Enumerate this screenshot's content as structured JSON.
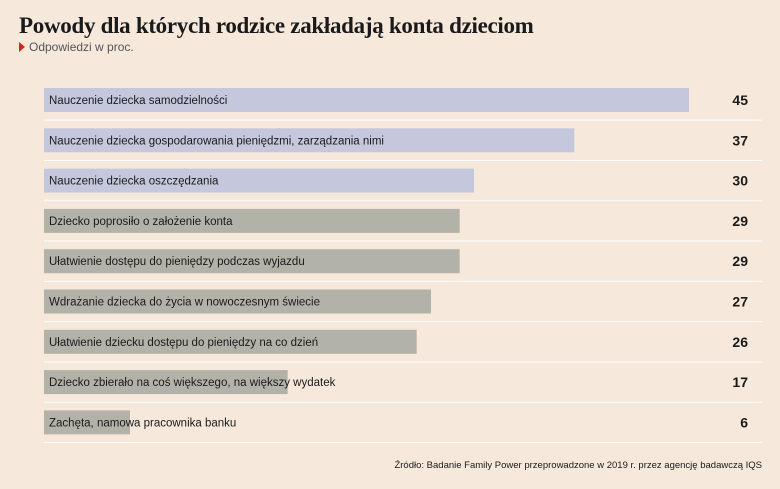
{
  "title": "Powody dla których rodzice zakładają konta dzieciom",
  "subtitle": "Odpowiedzi w proc.",
  "source": "Źródło: Badanie Family Power przeprowadzone w 2019 r. przez agencję badawczą IQS",
  "colors": {
    "background": "#f6e9dc",
    "bar_highlight": "#c5c8dc",
    "bar_default": "#b3b2a8",
    "separator": "#ffffff",
    "marker": "#d8211f"
  },
  "chart_data": {
    "type": "bar",
    "orientation": "horizontal",
    "categories": [
      "Nauczenie dziecka samodzielności",
      "Nauczenie dziecka gospodarowania pieniędzmi, zarządzania nimi",
      "Nauczenie dziecka oszczędzania",
      "Dziecko poprosiło o założenie konta",
      "Ułatwienie dostępu do pieniędzy podczas wyjazdu",
      "Wdrażanie dziecka do życia w nowoczesnym świecie",
      "Ułatwienie dziecku dostępu do pieniędzy na co dzień",
      "Dziecko zbierało na coś większego, na większy wydatek",
      "Zachęta, namowa pracownika banku"
    ],
    "values": [
      45,
      37,
      30,
      29,
      29,
      27,
      26,
      17,
      6
    ],
    "value_labels": [
      "45",
      "37",
      "30",
      "29",
      "29",
      "27",
      "26",
      "17",
      "6"
    ],
    "highlighted": [
      true,
      true,
      true,
      false,
      false,
      false,
      false,
      false,
      false
    ],
    "xlim": [
      0,
      45
    ],
    "grid": false,
    "legend": "none"
  }
}
